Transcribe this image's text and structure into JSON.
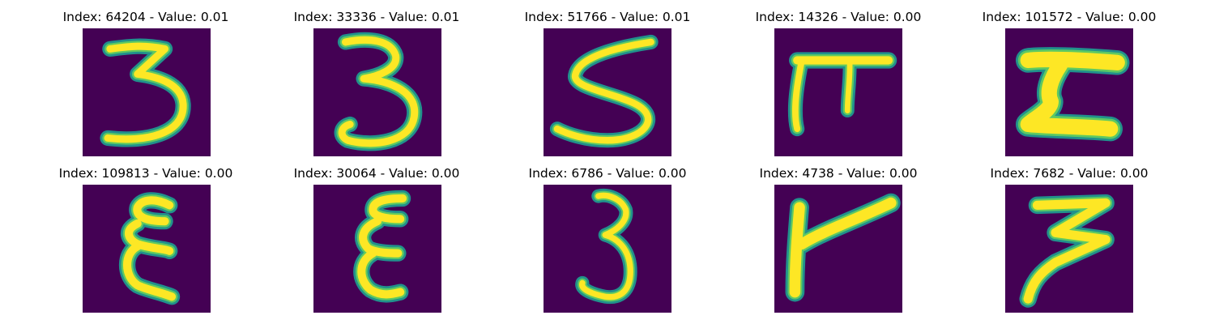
{
  "colors": {
    "background": "#440154",
    "stroke_core": "#fde725",
    "stroke_mid": "#5ec962",
    "stroke_edge": "#21918c"
  },
  "panels": [
    {
      "title": "Index: 64204 - Value: 0.01",
      "glyph": "3"
    },
    {
      "title": "Index: 33336 - Value: 0.01",
      "glyph": "3"
    },
    {
      "title": "Index: 51766 - Value: 0.01",
      "glyph": "S"
    },
    {
      "title": "Index: 14326 - Value: 0.00",
      "glyph": "pi"
    },
    {
      "title": "Index: 101572 - Value: 0.00",
      "glyph": "Z-block"
    },
    {
      "title": "Index: 109813 - Value: 0.00",
      "glyph": "epsilon"
    },
    {
      "title": "Index: 30064 - Value: 0.00",
      "glyph": "epsilon"
    },
    {
      "title": "Index: 6786 - Value: 0.00",
      "glyph": "3"
    },
    {
      "title": "Index: 4738 - Value: 0.00",
      "glyph": "flag"
    },
    {
      "title": "Index: 7682 - Value: 0.00",
      "glyph": "3-slanted"
    }
  ]
}
